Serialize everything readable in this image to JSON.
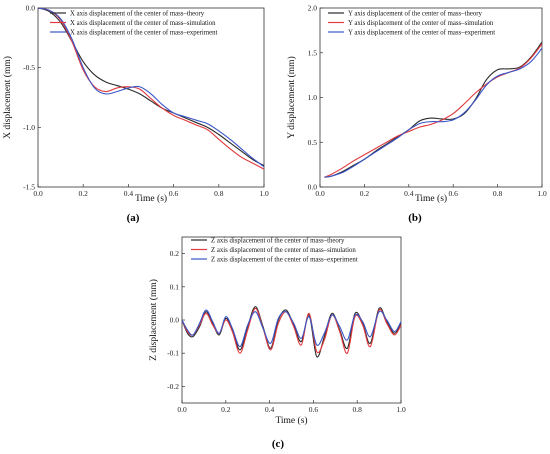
{
  "chart_data": [
    {
      "type": "line",
      "panel_label": "(a)",
      "xlabel": "Time  (s)",
      "ylabel": "X displacement  (mm)",
      "xlim": [
        0.0,
        1.0
      ],
      "ylim": [
        -1.5,
        0.0
      ],
      "x_ticks": [
        "0.0",
        "0.2",
        "0.4",
        "0.6",
        "0.8",
        "1.0"
      ],
      "y_ticks": [
        "-1.5",
        "-1.0",
        "-0.5",
        "0.0"
      ],
      "legend_position": "top-right",
      "series": [
        {
          "name": "X axis displacement of the center of mass–theory",
          "color": "#2a2a2a",
          "x": [
            0.0,
            0.05,
            0.1,
            0.15,
            0.2,
            0.25,
            0.3,
            0.35,
            0.4,
            0.45,
            0.5,
            0.55,
            0.6,
            0.65,
            0.7,
            0.75,
            0.8,
            0.85,
            0.9,
            0.95,
            1.0
          ],
          "y": [
            0.0,
            -0.03,
            -0.12,
            -0.28,
            -0.45,
            -0.56,
            -0.62,
            -0.65,
            -0.68,
            -0.72,
            -0.78,
            -0.84,
            -0.88,
            -0.92,
            -0.96,
            -1.0,
            -1.06,
            -1.13,
            -1.2,
            -1.27,
            -1.32
          ]
        },
        {
          "name": "X axis displacement of the center of mass–simulation",
          "color": "#e0393e",
          "x": [
            0.0,
            0.05,
            0.1,
            0.15,
            0.2,
            0.25,
            0.3,
            0.35,
            0.4,
            0.45,
            0.5,
            0.55,
            0.6,
            0.65,
            0.7,
            0.75,
            0.8,
            0.85,
            0.9,
            0.95,
            1.0
          ],
          "y": [
            0.0,
            -0.02,
            -0.1,
            -0.28,
            -0.52,
            -0.66,
            -0.7,
            -0.67,
            -0.66,
            -0.68,
            -0.76,
            -0.84,
            -0.9,
            -0.94,
            -0.98,
            -1.02,
            -1.1,
            -1.18,
            -1.25,
            -1.3,
            -1.35
          ]
        },
        {
          "name": "X axis displacement of the center of mass–experiment",
          "color": "#3a56c8",
          "x": [
            0.0,
            0.05,
            0.1,
            0.15,
            0.2,
            0.25,
            0.3,
            0.35,
            0.4,
            0.45,
            0.5,
            0.55,
            0.6,
            0.65,
            0.7,
            0.75,
            0.8,
            0.85,
            0.9,
            0.95,
            1.0
          ],
          "y": [
            0.0,
            -0.02,
            -0.09,
            -0.26,
            -0.5,
            -0.67,
            -0.72,
            -0.7,
            -0.67,
            -0.66,
            -0.72,
            -0.81,
            -0.88,
            -0.91,
            -0.94,
            -0.97,
            -1.03,
            -1.1,
            -1.18,
            -1.26,
            -1.33
          ]
        }
      ]
    },
    {
      "type": "line",
      "panel_label": "(b)",
      "xlabel": "Time  (s)",
      "ylabel": "Y displacement  (mm)",
      "xlim": [
        0.0,
        1.0
      ],
      "ylim": [
        0.0,
        2.0
      ],
      "x_ticks": [
        "0.0",
        "0.2",
        "0.4",
        "0.6",
        "0.8",
        "1.0"
      ],
      "y_ticks": [
        "0.0",
        "0.5",
        "1.0",
        "1.5",
        "2.0"
      ],
      "legend_position": "top-left",
      "series": [
        {
          "name": "Y axis displacement of the center of mass–theory",
          "color": "#2a2a2a",
          "x": [
            0.02,
            0.05,
            0.1,
            0.15,
            0.2,
            0.25,
            0.3,
            0.35,
            0.4,
            0.45,
            0.5,
            0.55,
            0.6,
            0.65,
            0.7,
            0.75,
            0.8,
            0.85,
            0.9,
            0.95,
            1.0
          ],
          "y": [
            0.11,
            0.12,
            0.17,
            0.24,
            0.31,
            0.4,
            0.48,
            0.56,
            0.64,
            0.74,
            0.77,
            0.76,
            0.76,
            0.82,
            0.98,
            1.2,
            1.31,
            1.32,
            1.34,
            1.45,
            1.62
          ]
        },
        {
          "name": "Y axis displacement of the center of mass–simulation",
          "color": "#e0393e",
          "x": [
            0.02,
            0.05,
            0.1,
            0.15,
            0.2,
            0.25,
            0.3,
            0.35,
            0.4,
            0.45,
            0.5,
            0.55,
            0.6,
            0.65,
            0.7,
            0.75,
            0.8,
            0.85,
            0.9,
            0.95,
            1.0
          ],
          "y": [
            0.11,
            0.14,
            0.21,
            0.29,
            0.36,
            0.43,
            0.5,
            0.57,
            0.62,
            0.67,
            0.7,
            0.75,
            0.82,
            0.93,
            1.05,
            1.15,
            1.23,
            1.28,
            1.33,
            1.44,
            1.6
          ]
        },
        {
          "name": "Y axis displacement of the center of mass–experiment",
          "color": "#3a56c8",
          "x": [
            0.02,
            0.05,
            0.1,
            0.15,
            0.2,
            0.25,
            0.3,
            0.35,
            0.4,
            0.45,
            0.5,
            0.55,
            0.6,
            0.65,
            0.7,
            0.75,
            0.8,
            0.85,
            0.9,
            0.95,
            1.0
          ],
          "y": [
            0.11,
            0.12,
            0.16,
            0.23,
            0.31,
            0.39,
            0.47,
            0.55,
            0.64,
            0.71,
            0.73,
            0.73,
            0.75,
            0.83,
            0.97,
            1.14,
            1.24,
            1.28,
            1.32,
            1.4,
            1.55
          ]
        }
      ]
    },
    {
      "type": "line",
      "panel_label": "(c)",
      "xlabel": "Time  (s)",
      "ylabel": "Z displacement  (mm)",
      "xlim": [
        0.0,
        1.0
      ],
      "ylim": [
        -0.25,
        0.25
      ],
      "x_ticks": [
        "0.0",
        "0.2",
        "0.4",
        "0.6",
        "0.8",
        "1.0"
      ],
      "y_ticks": [
        "-0.2",
        "-0.1",
        "0.0",
        "0.1",
        "0.2"
      ],
      "legend_position": "top-left",
      "series": [
        {
          "name": "Z axis displacement of the center of mass–theory",
          "color": "#2a2a2a",
          "x": [
            0.0,
            0.025,
            0.05,
            0.08,
            0.11,
            0.14,
            0.17,
            0.2,
            0.23,
            0.265,
            0.3,
            0.335,
            0.37,
            0.405,
            0.44,
            0.475,
            0.51,
            0.545,
            0.58,
            0.615,
            0.65,
            0.685,
            0.72,
            0.755,
            0.79,
            0.825,
            0.86,
            0.9,
            0.935,
            0.97,
            1.0
          ],
          "y": [
            0.0,
            -0.04,
            -0.05,
            -0.02,
            0.025,
            -0.01,
            -0.045,
            0.005,
            -0.03,
            -0.09,
            -0.02,
            0.04,
            -0.02,
            -0.085,
            0.0,
            0.03,
            -0.015,
            -0.065,
            0.015,
            -0.11,
            -0.05,
            0.02,
            -0.03,
            -0.085,
            0.02,
            -0.01,
            -0.07,
            0.035,
            -0.005,
            -0.04,
            -0.01
          ]
        },
        {
          "name": "Z axis displacement of the center of mass–simulation",
          "color": "#e0393e",
          "x": [
            0.0,
            0.025,
            0.05,
            0.08,
            0.11,
            0.14,
            0.17,
            0.2,
            0.23,
            0.265,
            0.3,
            0.335,
            0.37,
            0.405,
            0.44,
            0.475,
            0.51,
            0.545,
            0.58,
            0.615,
            0.65,
            0.685,
            0.72,
            0.755,
            0.79,
            0.825,
            0.86,
            0.9,
            0.935,
            0.97,
            1.0
          ],
          "y": [
            0.0,
            -0.035,
            -0.045,
            -0.015,
            0.02,
            -0.015,
            -0.04,
            0.0,
            -0.035,
            -0.1,
            -0.03,
            0.035,
            -0.025,
            -0.09,
            -0.01,
            0.025,
            -0.02,
            -0.075,
            0.02,
            -0.095,
            -0.06,
            0.015,
            -0.035,
            -0.1,
            0.01,
            -0.015,
            -0.08,
            0.03,
            -0.01,
            -0.045,
            -0.015
          ]
        },
        {
          "name": "Z axis displacement of the center of mass–experiment",
          "color": "#3a56c8",
          "x": [
            0.0,
            0.025,
            0.05,
            0.08,
            0.11,
            0.14,
            0.17,
            0.2,
            0.23,
            0.265,
            0.3,
            0.335,
            0.37,
            0.405,
            0.44,
            0.475,
            0.51,
            0.545,
            0.58,
            0.615,
            0.65,
            0.685,
            0.72,
            0.755,
            0.79,
            0.825,
            0.86,
            0.9,
            0.935,
            0.97,
            1.0
          ],
          "y": [
            0.0,
            -0.03,
            -0.045,
            -0.01,
            0.03,
            -0.005,
            -0.04,
            0.01,
            -0.025,
            -0.08,
            -0.015,
            0.025,
            -0.025,
            -0.07,
            0.005,
            0.025,
            -0.01,
            -0.055,
            0.01,
            -0.075,
            -0.04,
            0.015,
            -0.02,
            -0.06,
            0.015,
            -0.005,
            -0.05,
            0.025,
            0.0,
            -0.035,
            -0.005
          ]
        }
      ]
    }
  ]
}
